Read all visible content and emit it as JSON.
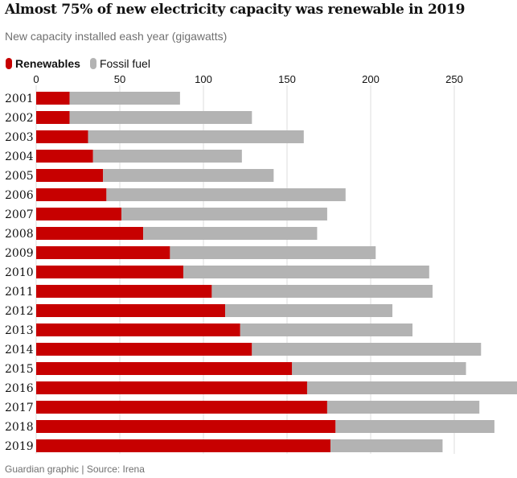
{
  "title": "Almost 75% of new electricity capacity was renewable in 2019",
  "subtitle": "New capacity installed eash year (gigawatts)",
  "legend": {
    "renewables": "Renewables",
    "fossil": "Fossil fuel"
  },
  "source": "Guardian graphic | Source: Irena",
  "colors": {
    "renewables": "#c70000",
    "fossil": "#b3b3b3",
    "gridline": "#dcdcdc"
  },
  "chart_data": {
    "type": "bar",
    "orientation": "horizontal",
    "stacked": true,
    "title": "Almost 75% of new electricity capacity was renewable in 2019",
    "subtitle": "New capacity installed eash year (gigawatts)",
    "xlim": [
      0,
      280
    ],
    "x_ticks": [
      0,
      50,
      100,
      150,
      200,
      250
    ],
    "grid": true,
    "legend_position": "top-left",
    "categories": [
      "2001",
      "2002",
      "2003",
      "2004",
      "2005",
      "2006",
      "2007",
      "2008",
      "2009",
      "2010",
      "2011",
      "2012",
      "2013",
      "2014",
      "2015",
      "2016",
      "2017",
      "2018",
      "2019"
    ],
    "series": [
      {
        "name": "Renewables",
        "values": [
          20,
          20,
          31,
          34,
          40,
          42,
          51,
          64,
          80,
          88,
          105,
          113,
          122,
          129,
          153,
          162,
          174,
          179,
          176
        ]
      },
      {
        "name": "Fossil fuel",
        "values": [
          66,
          109,
          129,
          89,
          102,
          143,
          123,
          104,
          123,
          147,
          132,
          100,
          103,
          137,
          104,
          128,
          91,
          95,
          67
        ]
      }
    ]
  }
}
